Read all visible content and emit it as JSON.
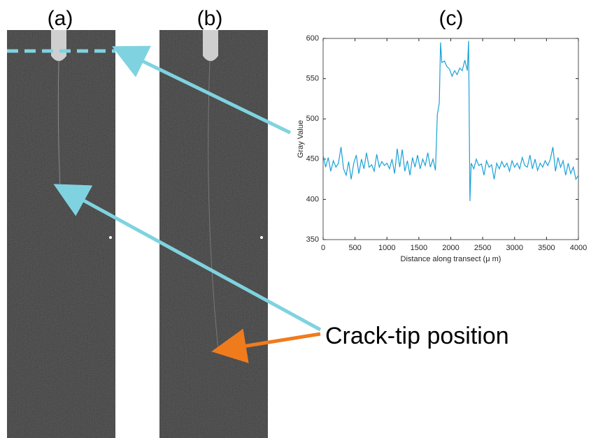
{
  "panel_labels": [
    "(a)",
    "(b)",
    "(c)"
  ],
  "annotation": "Crack-tip position",
  "chart_data": {
    "type": "line",
    "xlabel": "Distance along transect (μ m)",
    "ylabel": "Gray Value",
    "xlim": [
      0,
      4000
    ],
    "xticks": [
      0,
      500,
      1000,
      1500,
      2000,
      2500,
      3000,
      3500,
      4000
    ],
    "ylim": [
      350,
      600
    ],
    "yticks": [
      350,
      400,
      450,
      500,
      550,
      600
    ],
    "series": [
      {
        "color": "#1ba1d6",
        "x": [
          0,
          40,
          80,
          120,
          160,
          200,
          240,
          280,
          320,
          360,
          400,
          440,
          480,
          520,
          560,
          600,
          640,
          680,
          720,
          760,
          800,
          840,
          880,
          920,
          960,
          1000,
          1040,
          1080,
          1120,
          1160,
          1200,
          1240,
          1280,
          1320,
          1360,
          1400,
          1440,
          1480,
          1520,
          1560,
          1600,
          1640,
          1680,
          1720,
          1760,
          1790,
          1820,
          1840,
          1860,
          1900,
          1940,
          1980,
          2020,
          2060,
          2100,
          2140,
          2180,
          2220,
          2260,
          2280,
          2300,
          2320,
          2360,
          2400,
          2440,
          2480,
          2520,
          2560,
          2600,
          2640,
          2680,
          2720,
          2760,
          2800,
          2840,
          2880,
          2920,
          2960,
          3000,
          3040,
          3080,
          3120,
          3160,
          3200,
          3240,
          3280,
          3320,
          3360,
          3400,
          3440,
          3480,
          3520,
          3560,
          3600,
          3640,
          3680,
          3720,
          3760,
          3800,
          3840,
          3880,
          3920,
          3960,
          4000
        ],
        "values": [
          455,
          440,
          452,
          435,
          448,
          440,
          445,
          465,
          438,
          430,
          447,
          425,
          445,
          455,
          432,
          450,
          438,
          458,
          440,
          443,
          435,
          456,
          440,
          447,
          442,
          445,
          438,
          450,
          432,
          463,
          440,
          462,
          435,
          448,
          430,
          452,
          440,
          455,
          438,
          450,
          442,
          458,
          440,
          450,
          436,
          505,
          520,
          595,
          570,
          572,
          565,
          562,
          553,
          560,
          555,
          563,
          560,
          573,
          560,
          597,
          398,
          445,
          438,
          450,
          442,
          444,
          430,
          448,
          440,
          443,
          425,
          445,
          438,
          447,
          440,
          445,
          435,
          448,
          440,
          445,
          438,
          452,
          442,
          440,
          455,
          438,
          450,
          436,
          445,
          440,
          448,
          442,
          450,
          465,
          435,
          452,
          440,
          448,
          430,
          445,
          432,
          440,
          425,
          430
        ]
      }
    ]
  }
}
